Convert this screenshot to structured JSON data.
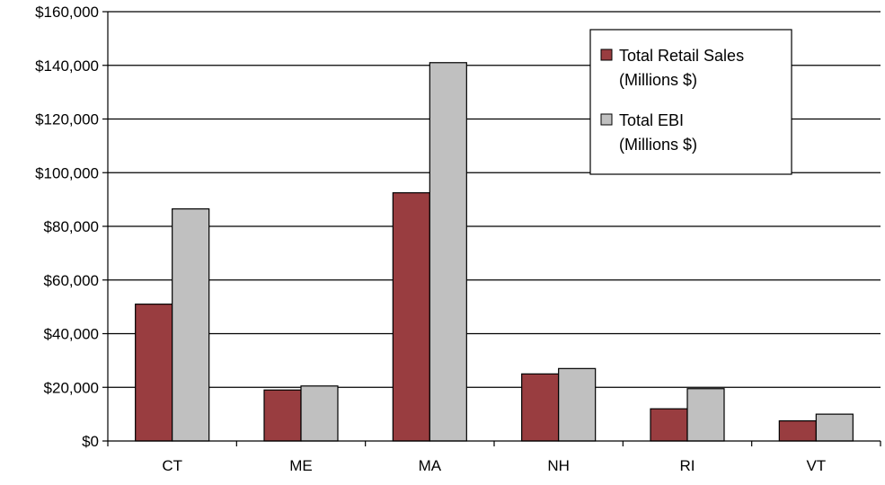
{
  "chart_data": {
    "type": "bar",
    "categories": [
      "CT",
      "ME",
      "MA",
      "NH",
      "RI",
      "VT"
    ],
    "series": [
      {
        "name": "Total Retail Sales (Millions $)",
        "name_lines": [
          "Total Retail Sales",
          "(Millions $)"
        ],
        "color": "#993d40",
        "values": [
          51000,
          19000,
          92500,
          25000,
          12000,
          7500
        ]
      },
      {
        "name": "Total EBI (Millions $)",
        "name_lines": [
          "Total EBI",
          "(Millions $)"
        ],
        "color": "#c0c0c0",
        "values": [
          86500,
          20500,
          141000,
          27000,
          19500,
          10000
        ]
      }
    ],
    "y_ticks": [
      0,
      20000,
      40000,
      60000,
      80000,
      100000,
      120000,
      140000,
      160000
    ],
    "y_tick_labels": [
      "$0",
      "$20,000",
      "$40,000",
      "$60,000",
      "$80,000",
      "$100,000",
      "$120,000",
      "$140,000",
      "$160,000"
    ],
    "ylim": [
      0,
      160000
    ],
    "grid": true,
    "legend_position": "top-right",
    "title": "",
    "xlabel": "",
    "ylabel": ""
  }
}
